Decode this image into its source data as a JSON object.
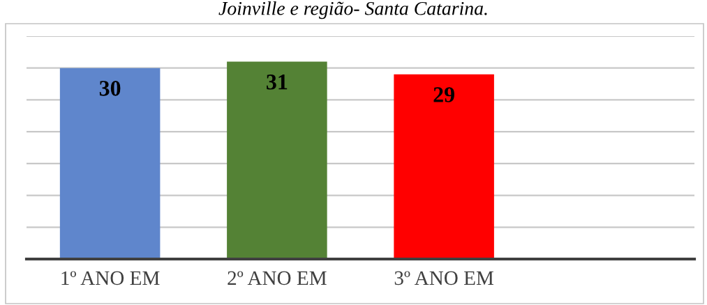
{
  "chart_data": {
    "type": "bar",
    "title": "Joinville e região- Santa Catarina.",
    "categories": [
      "1º ANO EM",
      "2º ANO EM",
      "3º ANO EM",
      null
    ],
    "values": [
      30,
      31,
      29,
      null
    ],
    "colors": [
      "#5f86cc",
      "#548235",
      "#ff0000",
      null
    ],
    "ylim": [
      0,
      35
    ],
    "yticks": [
      {
        "value": 0,
        "label": null
      },
      {
        "value": 5,
        "label": null
      },
      {
        "value": 10,
        "label": null
      },
      {
        "value": 15,
        "label": null
      },
      {
        "value": 20,
        "label": null
      },
      {
        "value": 25,
        "label": null
      },
      {
        "value": 30,
        "label": null
      },
      {
        "value": 35,
        "label": null
      }
    ],
    "grid": "y",
    "tick_labels": "x",
    "data_labels": true
  }
}
